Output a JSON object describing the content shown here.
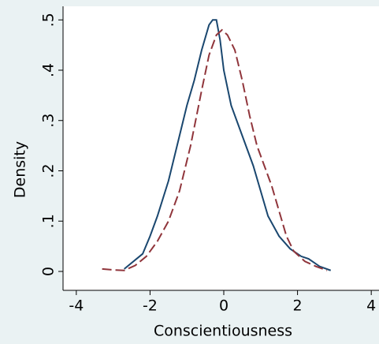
{
  "chart_data": {
    "type": "line",
    "x_label": "Conscientiousness",
    "y_label": "Density",
    "xlim": [
      -4.36,
      4.21
    ],
    "ylim": [
      -0.0376,
      0.527
    ],
    "xticks": [
      -4,
      -2,
      0,
      2,
      4
    ],
    "yticks": [
      0,
      {
        "value": 0.1,
        "label": ".1"
      },
      {
        "value": 0.2,
        "label": ".2"
      },
      {
        "value": 0.3,
        "label": ".3"
      },
      {
        "value": 0.4,
        "label": ".4"
      },
      {
        "value": 0.5,
        "label": ".5"
      }
    ],
    "grid": false,
    "series": [
      {
        "color": "#1a476f",
        "dash": false,
        "x": [
          -2.7,
          -2.2,
          -2.0,
          -1.8,
          -1.5,
          -1.2,
          -1.0,
          -0.8,
          -0.6,
          -0.4,
          -0.3,
          -0.2,
          -0.1,
          0.0,
          0.2,
          0.5,
          0.8,
          1.0,
          1.2,
          1.5,
          1.8,
          2.1,
          2.3,
          2.6,
          2.9
        ],
        "values": [
          0.005,
          0.035,
          0.07,
          0.11,
          0.18,
          0.27,
          0.33,
          0.38,
          0.44,
          0.49,
          0.5,
          0.5,
          0.46,
          0.4,
          0.33,
          0.27,
          0.21,
          0.16,
          0.11,
          0.07,
          0.045,
          0.03,
          0.025,
          0.01,
          0.002
        ]
      },
      {
        "color": "#90353b",
        "dash": true,
        "x": [
          -3.3,
          -3.0,
          -2.7,
          -2.4,
          -2.1,
          -1.8,
          -1.5,
          -1.2,
          -0.9,
          -0.6,
          -0.4,
          -0.2,
          -0.05,
          0.1,
          0.3,
          0.5,
          0.7,
          0.9,
          1.1,
          1.3,
          1.5,
          1.7,
          1.9,
          2.2,
          2.5,
          2.8
        ],
        "values": [
          0.005,
          0.003,
          0.002,
          0.012,
          0.03,
          0.06,
          0.1,
          0.16,
          0.25,
          0.36,
          0.43,
          0.47,
          0.48,
          0.47,
          0.44,
          0.38,
          0.31,
          0.25,
          0.21,
          0.17,
          0.12,
          0.07,
          0.04,
          0.02,
          0.01,
          0.002
        ]
      }
    ]
  }
}
